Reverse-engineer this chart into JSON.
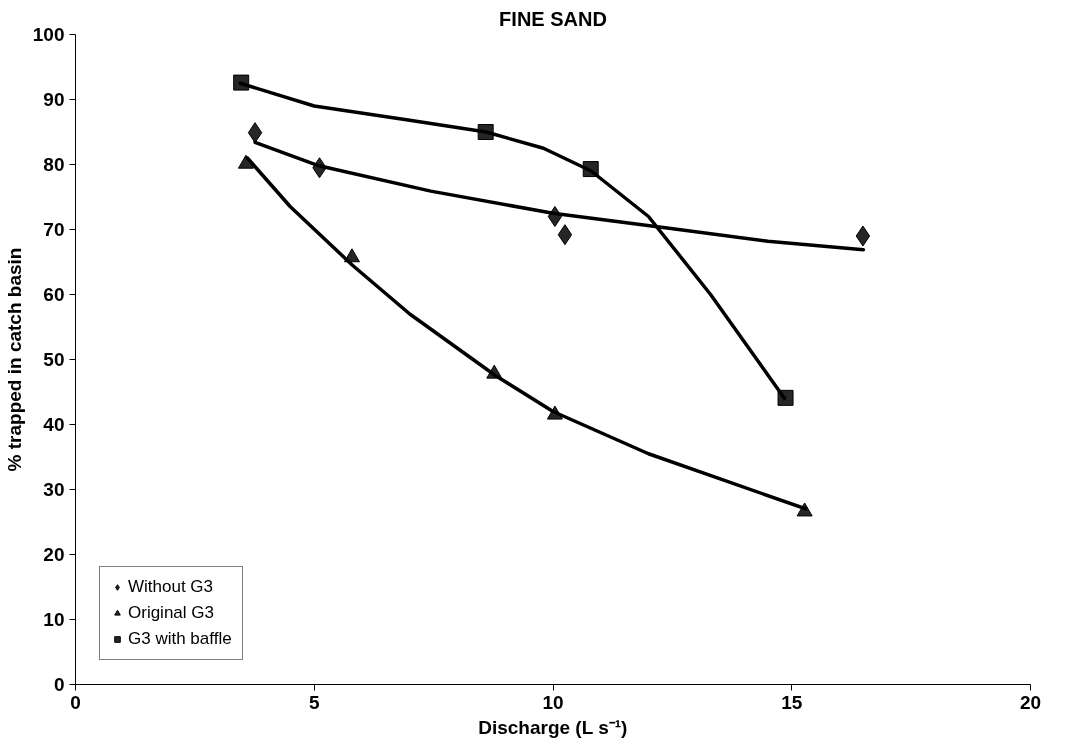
{
  "chart_data": {
    "type": "scatter",
    "title": "FINE SAND",
    "xlabel": "Discharge (L s⁻¹)",
    "ylabel": "% trapped in catch basin",
    "xlim": [
      0,
      20
    ],
    "ylim": [
      0,
      100
    ],
    "xticks": [
      0,
      5,
      10,
      15,
      20
    ],
    "yticks": [
      0,
      10,
      20,
      30,
      40,
      50,
      60,
      70,
      80,
      90,
      100
    ],
    "grid": false,
    "legend": "bottom left",
    "series": [
      {
        "name": "Without G3",
        "marker": "diamond",
        "color": "#000000",
        "x": [
          3.76,
          5.11,
          10.04,
          10.25,
          16.49
        ],
        "values": [
          84.9,
          79.5,
          72.0,
          69.2,
          69.0
        ]
      },
      {
        "name": "Original G3",
        "marker": "triangle",
        "color": "#000000",
        "x": [
          3.57,
          5.79,
          8.77,
          10.04,
          15.27
        ],
        "values": [
          80.1,
          65.7,
          47.8,
          41.5,
          26.6
        ]
      },
      {
        "name": "G3 with baffle",
        "marker": "square",
        "color": "#000000",
        "x": [
          3.47,
          8.59,
          10.79,
          14.87
        ],
        "values": [
          92.6,
          85.0,
          79.3,
          44.1
        ]
      },
      {
        "type": "line",
        "marker": "none",
        "color": "#000000",
        "x": [
          3.76,
          5.1,
          7.44,
          10.0,
          12.43,
          14.5,
          16.5
        ],
        "values": [
          83.4,
          79.8,
          75.9,
          72.5,
          70.2,
          68.2,
          66.9
        ]
      },
      {
        "type": "line",
        "marker": "none",
        "color": "#000000",
        "x": [
          3.6,
          4.5,
          5.8,
          7.0,
          8.8,
          10.0,
          12.0,
          15.3
        ],
        "values": [
          81.0,
          73.5,
          64.5,
          57.0,
          47.5,
          42.0,
          35.5,
          27.0
        ]
      },
      {
        "type": "line",
        "marker": "none",
        "color": "#000000",
        "x": [
          3.45,
          5.0,
          7.0,
          8.6,
          9.8,
          10.8,
          12.0,
          13.3,
          14.85
        ],
        "values": [
          92.5,
          89.0,
          86.8,
          85.0,
          82.5,
          79.0,
          72.0,
          60.0,
          44.0
        ]
      }
    ]
  }
}
